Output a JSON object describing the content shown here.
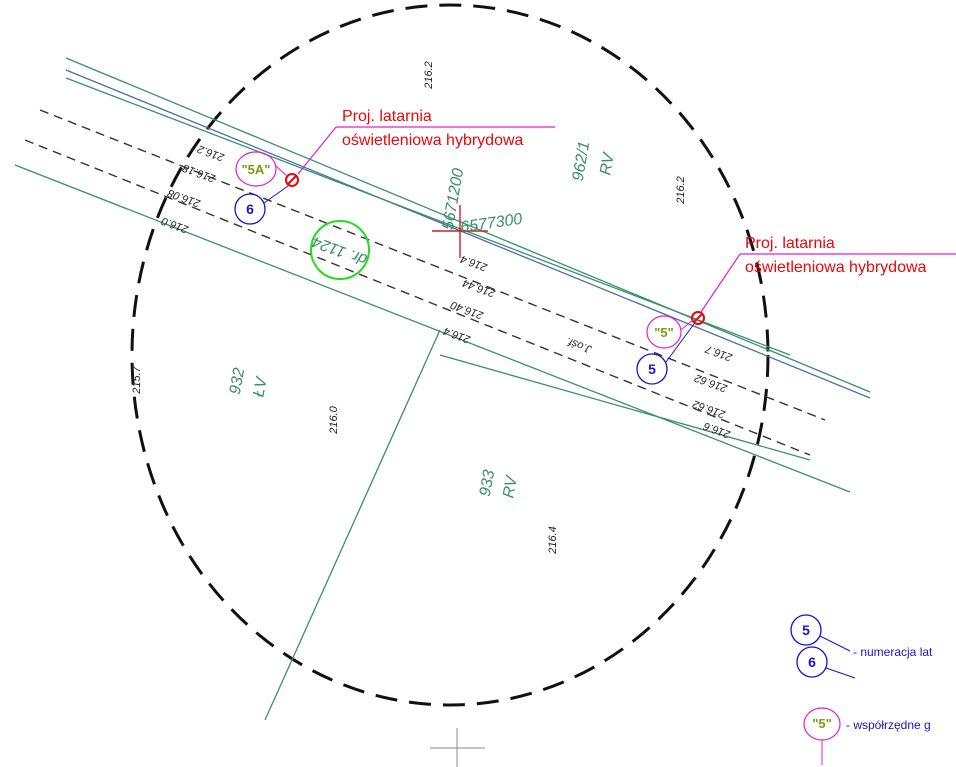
{
  "colors": {
    "annotation_red": "#e8070a",
    "number_blue": "#1616c8",
    "coordinate_magenta": "#e020d0",
    "coordinate_text": "#7a9a10",
    "map_green": "#3a8f6a",
    "road_blue": "#4a6fa5",
    "marker_green": "#22dd22"
  },
  "annotations": {
    "lamp_upper": {
      "line1": "Proj. latarnia",
      "line2": "oświetleniowa hybrydowa"
    },
    "lamp_right": {
      "line1": "Proj. latarnia",
      "line2": "oświetleniowa hybrydowa"
    }
  },
  "badges": {
    "coord_5a": "\"5A\"",
    "num_6": "6",
    "coord_5": "\"5\"",
    "num_5": "5"
  },
  "parcels": {
    "p962": "962/1",
    "p962_use": "RV",
    "p932": "932",
    "p932_use": "ŁV",
    "p933": "933",
    "p933_use": "RV",
    "road_label": "dr. 1124",
    "ditch": "J.ośf."
  },
  "grid": {
    "coord_x": "6577300",
    "coord_y": "5671200"
  },
  "elevations": {
    "e1": "216.2",
    "e2": "216.2",
    "e3": "216.2",
    "e4": "216.18",
    "e5": "216.08",
    "e6": "216.0",
    "e7": "216.4",
    "e8": "216.44",
    "e9": "216.40",
    "e10": "216.4",
    "e11": "215.7",
    "e12": "216.0",
    "e13": "216.4",
    "e14": "216.7",
    "e15": "216.62",
    "e16": "216.62",
    "e17": "216.6"
  },
  "legend": {
    "num_5": "5",
    "num_6": "6",
    "numbering_text": "- numeracja lat",
    "coord_badge": "\"5\"",
    "coords_text": "- współrzędne g"
  }
}
